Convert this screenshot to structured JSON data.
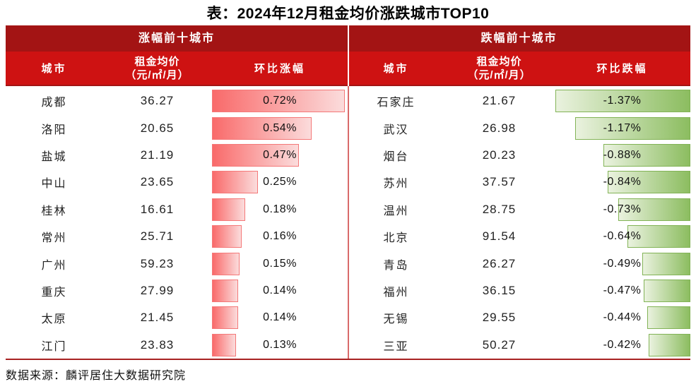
{
  "title": "表：2024年12月租金均价涨跌城市TOP10",
  "source": "数据来源：麟评居住大数据研究院",
  "colors": {
    "band_dark_red": "#A31414",
    "band_bright_red": "#CE1212",
    "header_text": "#FFFFFF",
    "body_text": "#1A1A1A",
    "divider_pink": "#D96A6A",
    "bottom_rule_red": "#A82222",
    "bar_up_gradient_start": "#F96A6A",
    "bar_up_gradient_end": "#FBDCDC",
    "bar_up_border": "#F47878",
    "bar_down_gradient_start": "#EAF2DF",
    "bar_down_gradient_end": "#8CBD60",
    "bar_down_border": "#82B356"
  },
  "chart_data": {
    "type": "table",
    "title": "表：2024年12月租金均价涨跌城市TOP10",
    "groups": [
      {
        "key": "up",
        "group_header": "涨幅前十城市",
        "col_city": "城市",
        "col_price_line1": "租金均价",
        "col_price_line2": "（元/㎡/月）",
        "col_change": "环比涨幅",
        "bar_direction": "left-anchored",
        "max_abs_value": 0.72,
        "rows": [
          {
            "city": "成都",
            "price": "36.27",
            "change": "0.72%",
            "value": 0.72
          },
          {
            "city": "洛阳",
            "price": "20.65",
            "change": "0.54%",
            "value": 0.54
          },
          {
            "city": "盐城",
            "price": "21.19",
            "change": "0.47%",
            "value": 0.47
          },
          {
            "city": "中山",
            "price": "23.65",
            "change": "0.25%",
            "value": 0.25
          },
          {
            "city": "桂林",
            "price": "16.61",
            "change": "0.18%",
            "value": 0.18
          },
          {
            "city": "常州",
            "price": "25.71",
            "change": "0.16%",
            "value": 0.16
          },
          {
            "city": "广州",
            "price": "59.23",
            "change": "0.15%",
            "value": 0.15
          },
          {
            "city": "重庆",
            "price": "27.99",
            "change": "0.14%",
            "value": 0.14
          },
          {
            "city": "太原",
            "price": "21.45",
            "change": "0.14%",
            "value": 0.14
          },
          {
            "city": "江门",
            "price": "23.83",
            "change": "0.13%",
            "value": 0.13
          }
        ]
      },
      {
        "key": "down",
        "group_header": "跌幅前十城市",
        "col_city": "城市",
        "col_price_line1": "租金均价",
        "col_price_line2": "（元/㎡/月）",
        "col_change": "环比跌幅",
        "bar_direction": "right-anchored",
        "max_abs_value": 1.37,
        "rows": [
          {
            "city": "石家庄",
            "price": "21.67",
            "change": "-1.37%",
            "value": 1.37
          },
          {
            "city": "武汉",
            "price": "26.98",
            "change": "-1.17%",
            "value": 1.17
          },
          {
            "city": "烟台",
            "price": "20.23",
            "change": "-0.88%",
            "value": 0.88
          },
          {
            "city": "苏州",
            "price": "37.57",
            "change": "-0.84%",
            "value": 0.84
          },
          {
            "city": "温州",
            "price": "28.75",
            "change": "-0.73%",
            "value": 0.73
          },
          {
            "city": "北京",
            "price": "91.54",
            "change": "-0.64%",
            "value": 0.64
          },
          {
            "city": "青岛",
            "price": "26.27",
            "change": "-0.49%",
            "value": 0.49
          },
          {
            "city": "福州",
            "price": "36.15",
            "change": "-0.47%",
            "value": 0.47
          },
          {
            "city": "无锡",
            "price": "29.55",
            "change": "-0.44%",
            "value": 0.44
          },
          {
            "city": "三亚",
            "price": "50.27",
            "change": "-0.42%",
            "value": 0.42
          }
        ]
      }
    ]
  }
}
